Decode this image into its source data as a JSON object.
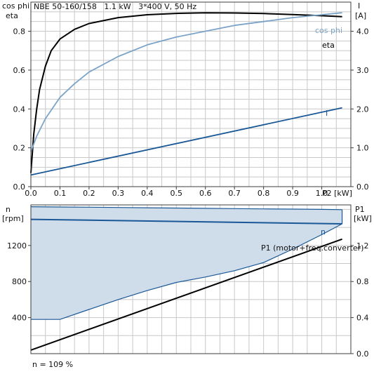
{
  "header": {
    "title": "NBE 50-160/158   1.1 kW   3*400 V, 50 Hz"
  },
  "footer": {
    "speed_note": "n = 109 %"
  },
  "colors": {
    "eta": "#000000",
    "cos_phi": "#7ba3c8",
    "current": "#1a5796",
    "speed": "#1a5796",
    "speed_band": "#cfdcea",
    "power": "#000000",
    "grid": "#c8c8c8",
    "frame": "#3c3c3c"
  },
  "chart_data": [
    {
      "id": "top",
      "type": "line",
      "xlabel": "P2 [kW]",
      "ylabel_left": [
        "cos phi",
        "eta"
      ],
      "ylabel_right": [
        "I",
        "[A]"
      ],
      "xlim": [
        0,
        1.1
      ],
      "ylim_left": [
        0,
        0.95
      ],
      "ylim_right": [
        0,
        4.75
      ],
      "xticks": [
        0,
        0.1,
        0.2,
        0.3,
        0.4,
        0.5,
        0.6,
        0.7,
        0.8,
        0.9,
        1.0
      ],
      "xtick_labels": [
        "0.0",
        "0.1",
        "0.2",
        "0.3",
        "0.4",
        "0.5",
        "0.6",
        "0.7",
        "0.8",
        "0.9",
        "1.0"
      ],
      "yticks_left": [
        0,
        0.2,
        0.4,
        0.6,
        0.8
      ],
      "ytick_labels_left": [
        "0.0",
        "0.2",
        "0.4",
        "0.6",
        "0.8"
      ],
      "yticks_right": [
        0,
        1,
        2,
        3,
        4
      ],
      "ytick_labels_right": [
        "0.0",
        "1.0",
        "2.0",
        "3.0",
        "4.0"
      ],
      "grid": true,
      "series": [
        {
          "name": "eta",
          "axis": "left",
          "x": [
            0.0,
            0.01,
            0.02,
            0.03,
            0.05,
            0.07,
            0.1,
            0.15,
            0.2,
            0.3,
            0.4,
            0.5,
            0.6,
            0.7,
            0.8,
            0.9,
            1.0,
            1.07
          ],
          "y": [
            0.07,
            0.27,
            0.4,
            0.5,
            0.62,
            0.7,
            0.76,
            0.81,
            0.84,
            0.87,
            0.885,
            0.892,
            0.895,
            0.894,
            0.891,
            0.886,
            0.88,
            0.875
          ]
        },
        {
          "name": "cos phi",
          "axis": "left",
          "x": [
            0.0,
            0.02,
            0.05,
            0.1,
            0.15,
            0.2,
            0.3,
            0.4,
            0.5,
            0.6,
            0.7,
            0.8,
            0.9,
            1.0,
            1.07
          ],
          "y": [
            0.18,
            0.26,
            0.35,
            0.46,
            0.53,
            0.59,
            0.67,
            0.73,
            0.77,
            0.8,
            0.83,
            0.85,
            0.87,
            0.885,
            0.895
          ]
        },
        {
          "name": "I",
          "axis": "right",
          "x": [
            0.0,
            1.07
          ],
          "y": [
            0.3,
            2.03
          ]
        }
      ]
    },
    {
      "id": "bottom",
      "type": "area",
      "xlim": [
        0,
        1.1
      ],
      "ylabel_left": [
        "n",
        "[rpm]"
      ],
      "ylabel_right": [
        "P1",
        "[kW]"
      ],
      "ylim_left": [
        0,
        1650
      ],
      "ylim_right": [
        0,
        1.65
      ],
      "yticks_left": [
        400,
        800,
        1200
      ],
      "ytick_labels_left": [
        "400",
        "800",
        "1200"
      ],
      "yticks_right": [
        0,
        0.4,
        0.8,
        1.2
      ],
      "ytick_labels_right": [
        "0.0",
        "0.4",
        "0.8",
        "1.2"
      ],
      "grid": true,
      "speed_band": {
        "x": [
          0.0,
          0.1,
          0.2,
          0.3,
          0.4,
          0.5,
          0.6,
          0.7,
          0.8,
          0.9,
          1.0,
          1.07
        ],
        "upper": [
          1630,
          1627,
          1624,
          1621,
          1618,
          1615,
          1612,
          1609,
          1606,
          1603,
          1600,
          1597
        ],
        "lower": [
          380,
          380,
          490,
          600,
          700,
          790,
          850,
          920,
          1010,
          1160,
          1320,
          1440
        ]
      },
      "series": [
        {
          "name": "n",
          "axis": "left",
          "x": [
            0.0,
            1.07
          ],
          "y": [
            1490,
            1440
          ]
        },
        {
          "name": "P1 (motor+freq.converter)",
          "axis": "right",
          "x": [
            0.0,
            1.07
          ],
          "y": [
            0.04,
            1.27
          ]
        }
      ]
    }
  ]
}
